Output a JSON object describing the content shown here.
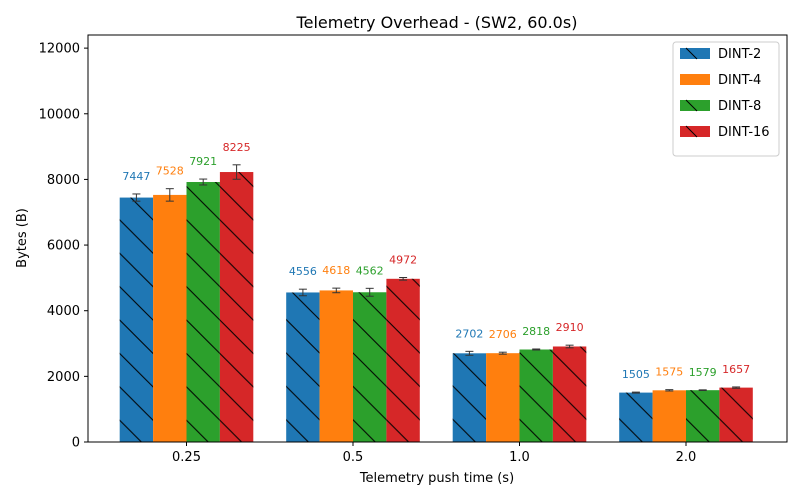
{
  "chart_data": {
    "type": "bar",
    "title": "Telemetry Overhead - (SW2, 60.0s)",
    "xlabel": "Telemetry push time (s)",
    "ylabel": "Bytes (B)",
    "categories": [
      "0.25",
      "0.5",
      "1.0",
      "2.0"
    ],
    "ylim": [
      0,
      12400
    ],
    "yticks": [
      0,
      2000,
      4000,
      6000,
      8000,
      10000,
      12000
    ],
    "grid": false,
    "legend_position": "top-right",
    "series": [
      {
        "name": "DINT-2",
        "color": "#1f77b4",
        "hatch": "backslash",
        "values": [
          7447,
          4556,
          2702,
          1505
        ],
        "errors": [
          110,
          100,
          60,
          15
        ]
      },
      {
        "name": "DINT-4",
        "color": "#ff7f0e",
        "hatch": "none",
        "values": [
          7528,
          4618,
          2706,
          1575
        ],
        "errors": [
          190,
          70,
          30,
          20
        ]
      },
      {
        "name": "DINT-8",
        "color": "#2ca02c",
        "hatch": "backslash",
        "values": [
          7921,
          4562,
          2818,
          1579
        ],
        "errors": [
          90,
          120,
          15,
          10
        ]
      },
      {
        "name": "DINT-16",
        "color": "#d62728",
        "hatch": "backslash",
        "values": [
          8225,
          4972,
          2910,
          1657
        ],
        "errors": [
          220,
          40,
          40,
          20
        ]
      }
    ]
  }
}
